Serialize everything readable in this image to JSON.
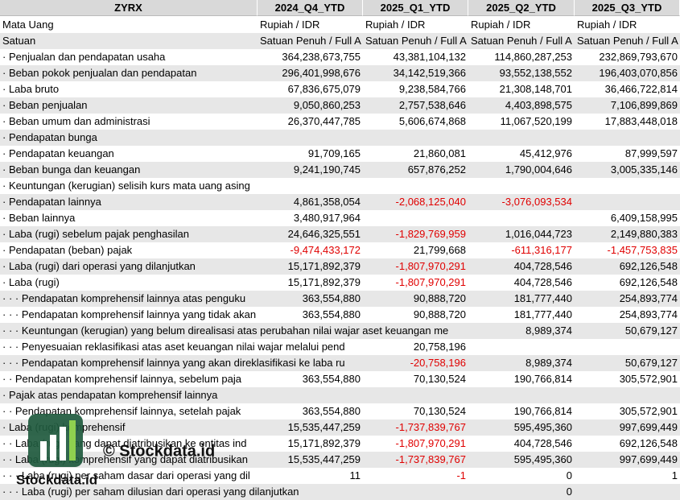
{
  "header": [
    "ZYRX",
    "2024_Q4_YTD",
    "2025_Q1_YTD",
    "2025_Q2_YTD",
    "2025_Q3_YTD"
  ],
  "rows": [
    [
      "Mata Uang",
      "Rupiah / IDR",
      "Rupiah / IDR",
      "Rupiah / IDR",
      "Rupiah / IDR"
    ],
    [
      "Satuan",
      "Satuan Penuh / Full A",
      "Satuan Penuh / Full A",
      "Satuan Penuh / Full A",
      "Satuan Penuh / Full A"
    ],
    [
      "· Penjualan dan pendapatan usaha",
      "364,238,673,755",
      "43,381,104,132",
      "114,860,287,253",
      "232,869,793,670"
    ],
    [
      "· Beban pokok penjualan dan pendapatan",
      "296,401,998,676",
      "34,142,519,366",
      "93,552,138,552",
      "196,403,070,856"
    ],
    [
      "· Laba bruto",
      "67,836,675,079",
      "9,238,584,766",
      "21,308,148,701",
      "36,466,722,814"
    ],
    [
      "· Beban penjualan",
      "9,050,860,253",
      "2,757,538,646",
      "4,403,898,575",
      "7,106,899,869"
    ],
    [
      "· Beban umum dan administrasi",
      "26,370,447,785",
      "5,606,674,868",
      "11,067,520,199",
      "17,883,448,018"
    ],
    [
      "· Pendapatan bunga",
      null,
      null,
      null,
      null
    ],
    [
      "· Pendapatan keuangan",
      "91,709,165",
      "21,860,081",
      "45,412,976",
      "87,999,597"
    ],
    [
      "· Beban bunga dan keuangan",
      "9,241,190,745",
      "657,876,252",
      "1,790,004,646",
      "3,005,335,146"
    ],
    [
      "· Keuntungan (kerugian) selisih kurs mata uang asing",
      null,
      null,
      null,
      null
    ],
    [
      "· Pendapatan lainnya",
      "4,861,358,054",
      "-2,068,125,040",
      "-3,076,093,534",
      null
    ],
    [
      "· Beban lainnya",
      "3,480,917,964",
      null,
      null,
      "6,409,158,995"
    ],
    [
      "· Laba (rugi) sebelum pajak penghasilan",
      "24,646,325,551",
      "-1,829,769,959",
      "1,016,044,723",
      "2,149,880,383"
    ],
    [
      "· Pendapatan (beban) pajak",
      "-9,474,433,172",
      "21,799,668",
      "-611,316,177",
      "-1,457,753,835"
    ],
    [
      "· Laba (rugi) dari operasi yang dilanjutkan",
      "15,171,892,379",
      "-1,807,970,291",
      "404,728,546",
      "692,126,548"
    ],
    [
      "· Laba (rugi)",
      "15,171,892,379",
      "-1,807,970,291",
      "404,728,546",
      "692,126,548"
    ],
    [
      "· · · Pendapatan komprehensif lainnya atas penguku",
      "363,554,880",
      "90,888,720",
      "181,777,440",
      "254,893,774"
    ],
    [
      "· · · Pendapatan komprehensif lainnya yang tidak akan direklasifikasi ke la",
      "363,554,880",
      "90,888,720",
      "181,777,440",
      "254,893,774"
    ],
    [
      "· · · Keuntungan (kerugian) yang belum direalisasi atas perubahan nilai wajar aset keuangan me",
      null,
      null,
      "8,989,374",
      "50,679,127"
    ],
    [
      "· · · Penyesuaian reklasifikasi atas aset keuangan nilai wajar melalui pend",
      null,
      "20,758,196",
      null,
      null
    ],
    [
      "· · · Pendapatan komprehensif lainnya yang akan direklasifikasi ke laba ru",
      null,
      "-20,758,196",
      "8,989,374",
      "50,679,127"
    ],
    [
      "· · Pendapatan komprehensif lainnya, sebelum paja",
      "363,554,880",
      "70,130,524",
      "190,766,814",
      "305,572,901"
    ],
    [
      "· Pajak atas pendapatan komprehensif lainnya",
      null,
      null,
      null,
      null
    ],
    [
      "· · Pendapatan komprehensif lainnya, setelah pajak",
      "363,554,880",
      "70,130,524",
      "190,766,814",
      "305,572,901"
    ],
    [
      "· Laba (rugi) komprehensif",
      "15,535,447,259",
      "-1,737,839,767",
      "595,495,360",
      "997,699,449"
    ],
    [
      "· · Laba (rugi) yang dapat diatribusikan ke entitas ind",
      "15,171,892,379",
      "-1,807,970,291",
      "404,728,546",
      "692,126,548"
    ],
    [
      "· · Laba (rugi) komprehensif yang dapat diatribusikan",
      "15,535,447,259",
      "-1,737,839,767",
      "595,495,360",
      "997,699,449"
    ],
    [
      "· · · Laba (rugi) per saham dasar dari operasi yang dil",
      "11",
      "-1",
      "0",
      "1"
    ],
    [
      "· · · Laba (rugi) per saham dilusian dari operasi yang dilanjutkan",
      null,
      null,
      "0",
      null
    ]
  ],
  "watermark": {
    "center": "© Stockdata.id",
    "logo": "Stockdata.id"
  }
}
